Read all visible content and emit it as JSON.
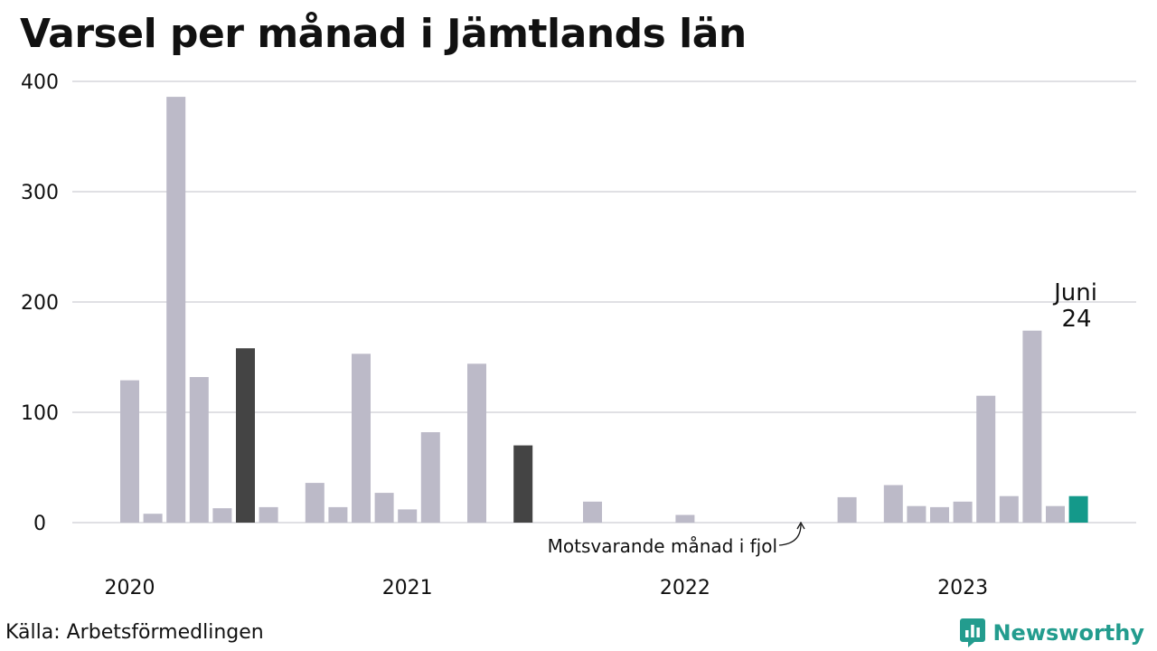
{
  "title": "Varsel per månad i Jämtlands län",
  "source": "Källa: Arbetsförmedlingen",
  "brand": {
    "name": "Newsworthy",
    "icon": "newsworthy-logo-icon",
    "color": "#239c8e"
  },
  "annotation": {
    "reference_label": "Motsvarande månad i fjol",
    "highlight_month": "Juni",
    "highlight_value": "24"
  },
  "chart_data": {
    "type": "bar",
    "title": "Varsel per månad i Jämtlands län",
    "xlabel": "",
    "ylabel": "",
    "ylim": [
      0,
      400
    ],
    "yticks": [
      0,
      100,
      200,
      300,
      400
    ],
    "year_labels": [
      "2020",
      "2021",
      "2022",
      "2023"
    ],
    "grid": true,
    "colors": {
      "default": "#bcbac8",
      "reference": "#444444",
      "current": "#14998a"
    },
    "categories": [
      "2020-01",
      "2020-02",
      "2020-03",
      "2020-04",
      "2020-05",
      "2020-06",
      "2020-07",
      "2020-08",
      "2020-09",
      "2020-10",
      "2020-11",
      "2020-12",
      "2021-01",
      "2021-02",
      "2021-03",
      "2021-04",
      "2021-05",
      "2021-06",
      "2021-07",
      "2021-08",
      "2021-09",
      "2021-10",
      "2021-11",
      "2021-12",
      "2022-01",
      "2022-02",
      "2022-03",
      "2022-04",
      "2022-05",
      "2022-06",
      "2022-07",
      "2022-08",
      "2022-09",
      "2022-10",
      "2022-11",
      "2022-12",
      "2023-01",
      "2023-02",
      "2023-03",
      "2023-04",
      "2023-05",
      "2023-06"
    ],
    "values": [
      129,
      8,
      386,
      132,
      13,
      158,
      14,
      0,
      36,
      14,
      153,
      27,
      12,
      82,
      0,
      144,
      0,
      70,
      0,
      0,
      19,
      0,
      0,
      0,
      7,
      0,
      0,
      0,
      0,
      0,
      0,
      23,
      0,
      34,
      15,
      14,
      19,
      115,
      24,
      174,
      15,
      24
    ],
    "highlight": {
      "reference": [
        "2020-06",
        "2021-06"
      ],
      "current": "2023-06"
    }
  }
}
